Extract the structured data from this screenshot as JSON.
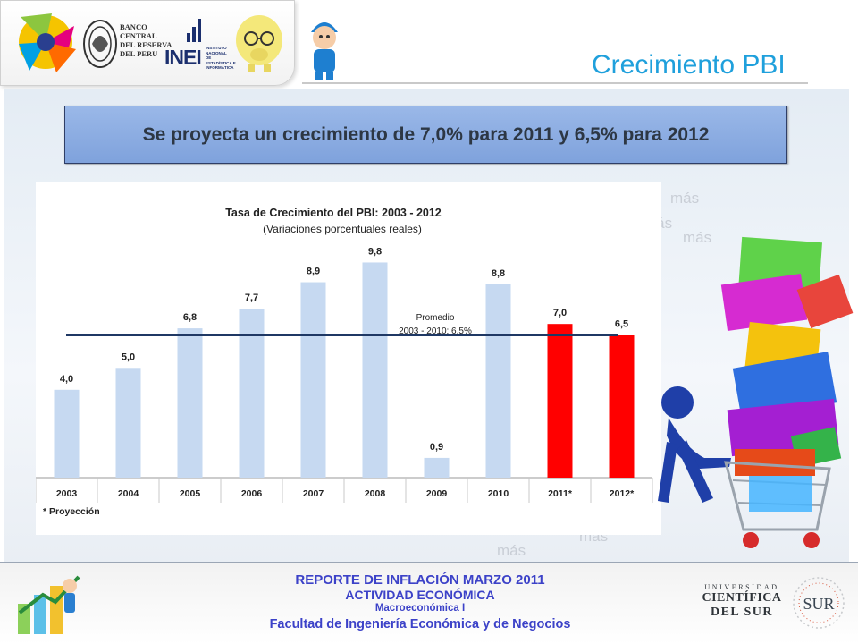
{
  "header": {
    "page_title": "Crecimiento PBI",
    "bcrp_lines": [
      "BANCO",
      "CENTRAL",
      "DEL RESERVA",
      "DEL PERU"
    ],
    "inei_label": "INEI",
    "inei_sub_lines": [
      "INSTITUTO",
      "NACIONAL",
      "DE",
      "ESTADÍSTICA E",
      "INFORMÁTICA"
    ]
  },
  "banner": {
    "text": "Se proyecta un crecimiento de 7,0% para 2011 y 6,5% para 2012"
  },
  "chart_data": {
    "type": "bar",
    "title": "Tasa de Crecimiento del PBI: 2003 - 2012",
    "subtitle": "(Variaciones porcentuales reales)",
    "categories": [
      "2003",
      "2004",
      "2005",
      "2006",
      "2007",
      "2008",
      "2009",
      "2010",
      "2011*",
      "2012*"
    ],
    "values": [
      4.0,
      5.0,
      6.8,
      7.7,
      8.9,
      9.8,
      0.9,
      8.8,
      7.0,
      6.5
    ],
    "value_labels": [
      "4,0",
      "5,0",
      "6,8",
      "7,7",
      "8,9",
      "9,8",
      "0,9",
      "8,8",
      "7,0",
      "6,5"
    ],
    "bar_colors": [
      "#c6d9f1",
      "#c6d9f1",
      "#c6d9f1",
      "#c6d9f1",
      "#c6d9f1",
      "#c6d9f1",
      "#c6d9f1",
      "#c6d9f1",
      "#ff0000",
      "#ff0000"
    ],
    "projection_color": "#ff0000",
    "historic_color": "#c6d9f1",
    "average_line": {
      "value": 6.5,
      "label_lines": [
        "Promedio",
        "2003 - 2010: 6,5%"
      ],
      "color": "#1f3864"
    },
    "footnote": "* Proyección",
    "ylim": [
      0,
      11
    ],
    "grid": false,
    "legend": "none"
  },
  "decor": {
    "mas_word": "más"
  },
  "footer": {
    "line1": "REPORTE DE INFLACIÓN MARZO 2011",
    "line2": "ACTIVIDAD ECONÓMICA",
    "line3": "Macroeconómica I",
    "line4": "Facultad de Ingeniería Económica y de Negocios",
    "university_lines": [
      "UNIVERSIDAD",
      "CIENTÍFICA",
      "DEL SUR"
    ],
    "sur_label": "SUR"
  },
  "colors": {
    "title": "#1fa0dc",
    "banner_bg": "#8eaee4",
    "footer_text": "#3c42c8"
  }
}
